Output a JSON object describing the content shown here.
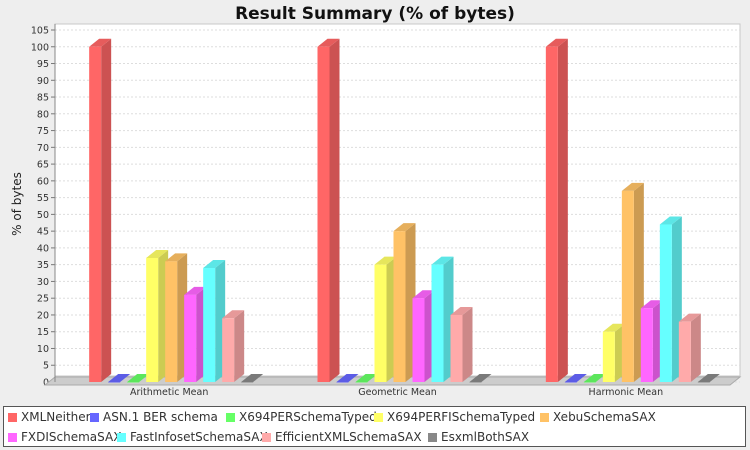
{
  "chart_data": {
    "type": "bar",
    "title": "Result Summary (% of bytes)",
    "xlabel": "",
    "ylabel": "% of bytes",
    "ylim": [
      0,
      105
    ],
    "yticks": [
      0,
      5,
      10,
      15,
      20,
      25,
      30,
      35,
      40,
      45,
      50,
      55,
      60,
      65,
      70,
      75,
      80,
      85,
      90,
      95,
      100,
      105
    ],
    "grid": true,
    "legend_position": "bottom",
    "categories": [
      "Arithmetic Mean",
      "Geometric Mean",
      "Harmonic Mean"
    ],
    "series": [
      {
        "name": "XMLNeither",
        "color": "#ff6666",
        "values": [
          100,
          100,
          100
        ]
      },
      {
        "name": "ASN.1 BER schema",
        "color": "#6666ff",
        "values": [
          0,
          0,
          0
        ]
      },
      {
        "name": "X694PERSchemaTyped",
        "color": "#66ff66",
        "values": [
          0,
          0,
          0
        ]
      },
      {
        "name": "X694PERFISchemaTyped",
        "color": "#ffff66",
        "values": [
          37,
          35,
          15
        ]
      },
      {
        "name": "XebuSchemaSAX",
        "color": "#ffc266",
        "values": [
          36,
          45,
          57
        ]
      },
      {
        "name": "FXDISchemaSAX",
        "color": "#ff66ff",
        "values": [
          26,
          25,
          22
        ]
      },
      {
        "name": "FastInfosetSchemaSAX",
        "color": "#66ffff",
        "values": [
          34,
          35,
          47
        ]
      },
      {
        "name": "EfficientXMLSchemaSAX",
        "color": "#ffaaaa",
        "values": [
          19,
          20,
          18
        ]
      },
      {
        "name": "EsxmlBothSAX",
        "color": "#888888",
        "values": [
          0,
          0,
          0
        ]
      }
    ]
  }
}
